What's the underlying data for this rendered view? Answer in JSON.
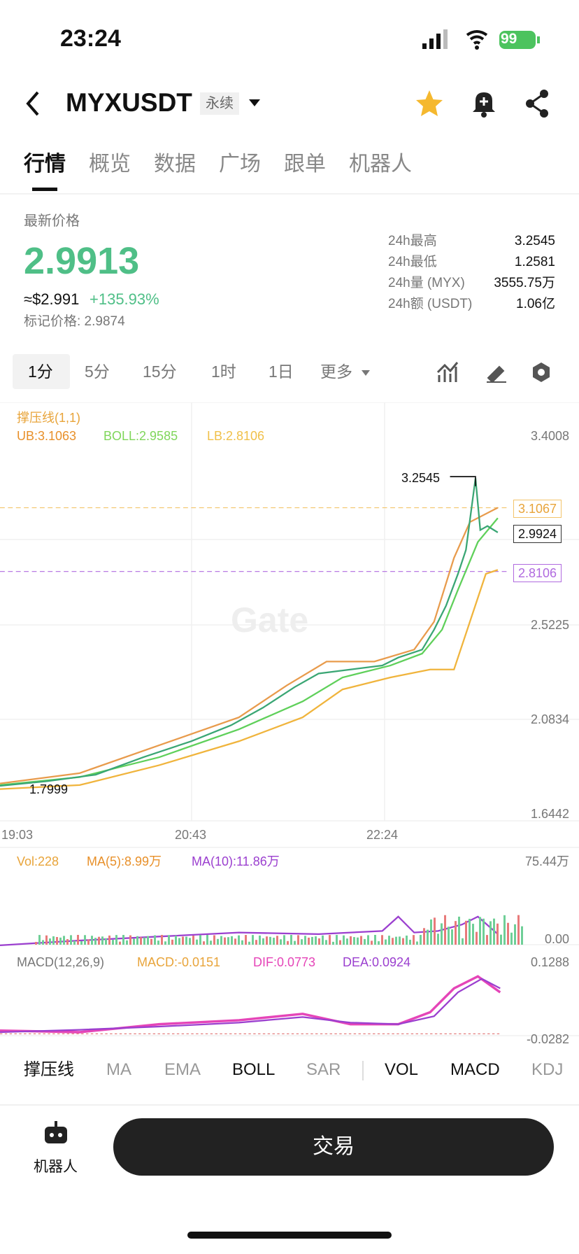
{
  "status": {
    "time": "23:24",
    "battery": "99"
  },
  "header": {
    "symbol": "MYXUSDT",
    "tag": "永续"
  },
  "tabs": [
    "行情",
    "概览",
    "数据",
    "广场",
    "跟单",
    "机器人"
  ],
  "price": {
    "label": "最新价格",
    "last": "2.9913",
    "usd": "≈$2.991",
    "change": "+135.93%",
    "mark": "标记价格: 2.9874"
  },
  "stats": [
    [
      "24h最高",
      "3.2545"
    ],
    [
      "24h最低",
      "1.2581"
    ],
    [
      "24h量 (MYX)",
      "3555.75万"
    ],
    [
      "24h额 (USDT)",
      "1.06亿"
    ]
  ],
  "intervals": [
    "1分",
    "5分",
    "15分",
    "1时",
    "1日",
    "更多"
  ],
  "chart": {
    "indicator": "撑压线(1,1)",
    "ub": "UB:3.1063",
    "boll": "BOLL:2.9585",
    "lb": "LB:2.8106",
    "yticks": [
      "3.4008",
      "2.5225",
      "2.0834",
      "1.6442"
    ],
    "tags": [
      "3.1067",
      "2.9924",
      "2.8106"
    ],
    "high": "3.2545",
    "low": "1.7999",
    "xticks": [
      "19:03",
      "20:43",
      "22:24"
    ],
    "watermark": "Gate"
  },
  "volume": {
    "vol": "Vol:228",
    "ma5": "MA(5):8.99万",
    "ma10": "MA(10):11.86万",
    "max": "75.44万",
    "min": "0.00"
  },
  "macd": {
    "name": "MACD(12,26,9)",
    "macd": "MACD:-0.0151",
    "dif": "DIF:0.0773",
    "dea": "DEA:0.0924",
    "max": "0.1288",
    "min": "-0.0282"
  },
  "indicators": [
    "撑压线",
    "MA",
    "EMA",
    "BOLL",
    "SAR",
    "VOL",
    "MACD",
    "KDJ"
  ],
  "bottom": {
    "robot": "机器人",
    "trade": "交易"
  }
}
